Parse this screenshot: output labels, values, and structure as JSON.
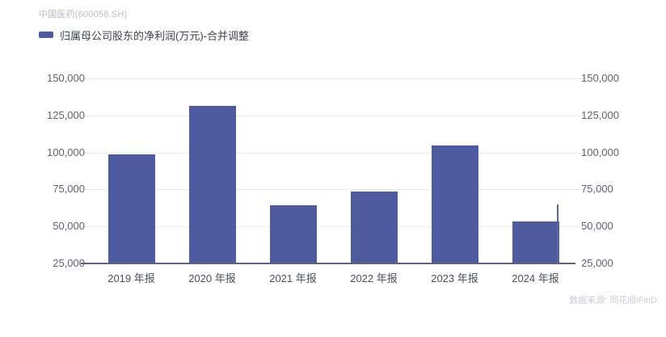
{
  "header": {
    "title": "中国医药(600056.SH)",
    "source": "数据来源: 同花顺iFinD"
  },
  "legend": {
    "label": "归属母公司股东的净利润(万元)-合并调整",
    "swatch_color": "#4e5c9f"
  },
  "chart_data": {
    "type": "bar",
    "title": "中国医药(600056.SH)",
    "series_name": "归属母公司股东的净利润(万元)-合并调整",
    "categories": [
      "2019 年报",
      "2020 年报",
      "2021 年报",
      "2022 年报",
      "2023 年报",
      "2024 年报"
    ],
    "values": [
      98500,
      131400,
      64500,
      73400,
      104900,
      53400
    ],
    "unit": "万元",
    "xlabel": "",
    "ylabel": "",
    "ylim": [
      25000,
      150000
    ],
    "y_ticks": [
      25000,
      50000,
      75000,
      100000,
      125000,
      150000
    ],
    "grid": true,
    "dual_y_axis": true,
    "legend_position": "top-left",
    "bar_color": "#4e5c9f",
    "grid_color": "#e8eaed",
    "axis_line_color": "#5a6484"
  }
}
